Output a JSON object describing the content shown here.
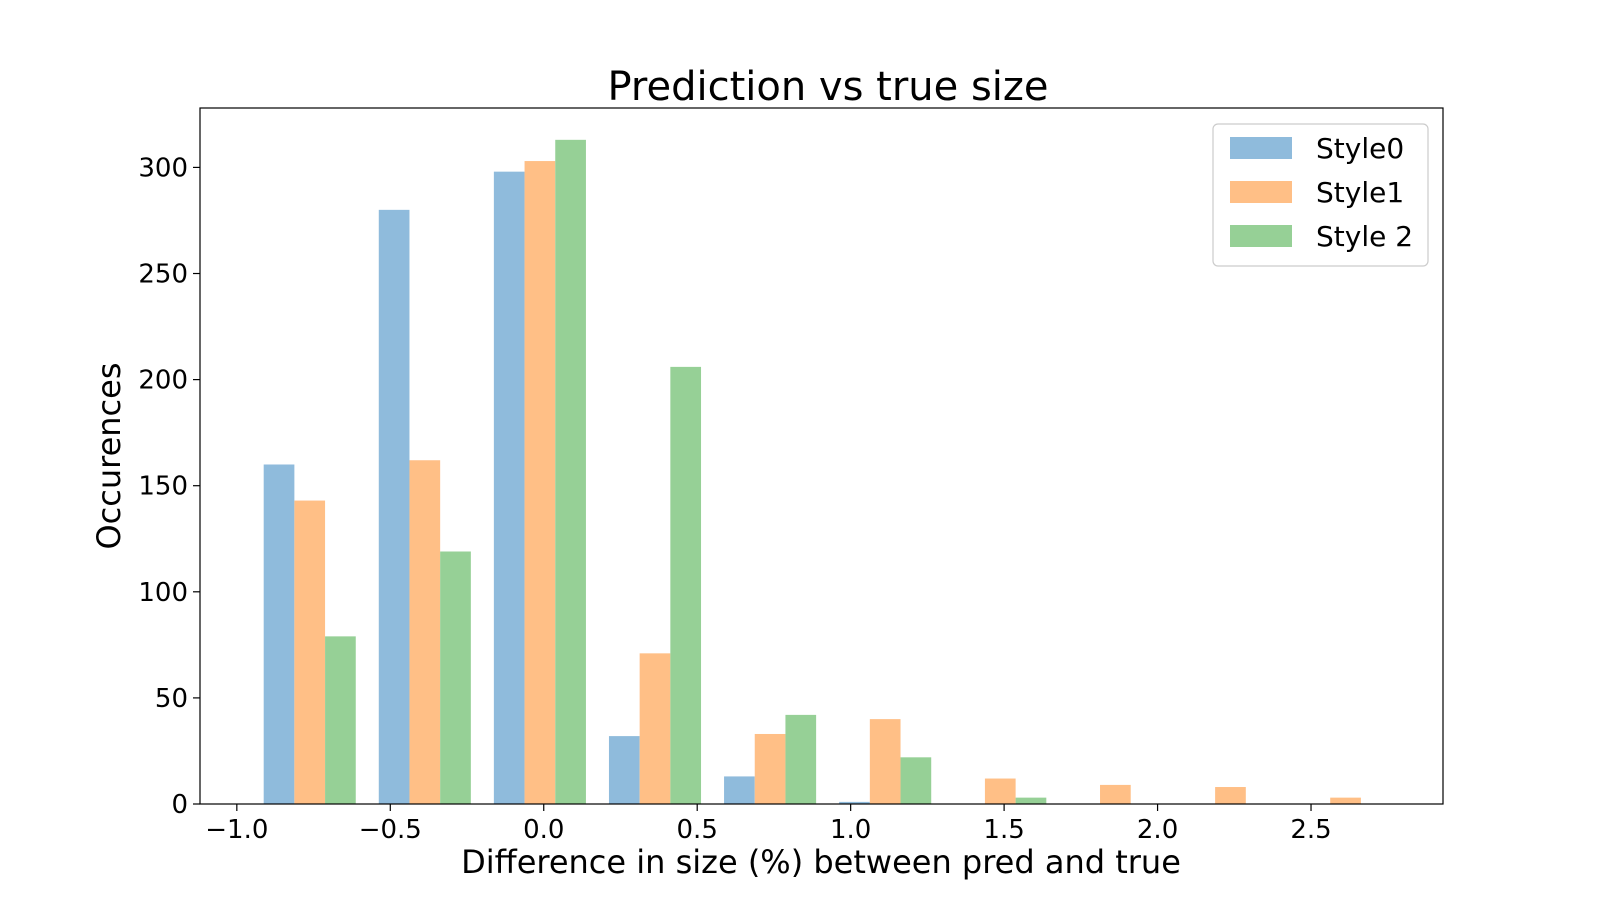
{
  "chart_data": {
    "type": "bar",
    "title": "Prediction vs true size",
    "xlabel": "Difference in size (%) between pred and true",
    "ylabel": "Occurences",
    "xlim": [
      -1.12,
      2.93
    ],
    "ylim": [
      0,
      328
    ],
    "xticks": [
      -1.0,
      -0.5,
      0.0,
      0.5,
      1.0,
      1.5,
      2.0,
      2.5
    ],
    "xtick_labels": [
      "−1.0",
      "−0.5",
      "0.0",
      "0.5",
      "1.0",
      "1.5",
      "2.0",
      "2.5"
    ],
    "yticks": [
      0,
      50,
      100,
      150,
      200,
      250,
      300
    ],
    "ytick_labels": [
      "0",
      "50",
      "100",
      "150",
      "200",
      "250",
      "300"
    ],
    "bin_edges": [
      -0.95,
      -0.575,
      -0.2,
      0.175,
      0.55,
      0.925,
      1.3,
      1.675,
      2.05,
      2.425,
      2.8
    ],
    "legend_position": "top-right",
    "grid": false,
    "series": [
      {
        "name": "Style0",
        "color": "#8fbbdc",
        "values": [
          160,
          280,
          298,
          32,
          13,
          1,
          0,
          0,
          0,
          0
        ]
      },
      {
        "name": "Style1",
        "color": "#ffbf86",
        "values": [
          143,
          162,
          303,
          71,
          33,
          40,
          12,
          9,
          8,
          3
        ]
      },
      {
        "name": "Style 2",
        "color": "#96d096",
        "values": [
          79,
          119,
          313,
          206,
          42,
          22,
          3,
          0,
          0,
          0
        ]
      }
    ]
  }
}
